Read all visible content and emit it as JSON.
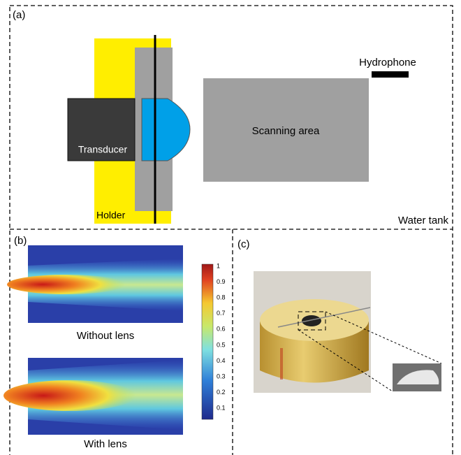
{
  "panel_a": {
    "label": "(a)",
    "hydrophone": "Hydrophone",
    "scanning_area": "Scanning area",
    "transducer": "Transducer",
    "holder": "Holder",
    "water_tank": "Water tank"
  },
  "panel_b": {
    "label": "(b)",
    "without_lens": "Without lens",
    "with_lens": "With lens",
    "colorbar": {
      "ticks": [
        1,
        0.9,
        0.8,
        0.7,
        0.6,
        0.5,
        0.4,
        0.3,
        0.2,
        0.1
      ]
    }
  },
  "panel_c": {
    "label": "(c)"
  }
}
